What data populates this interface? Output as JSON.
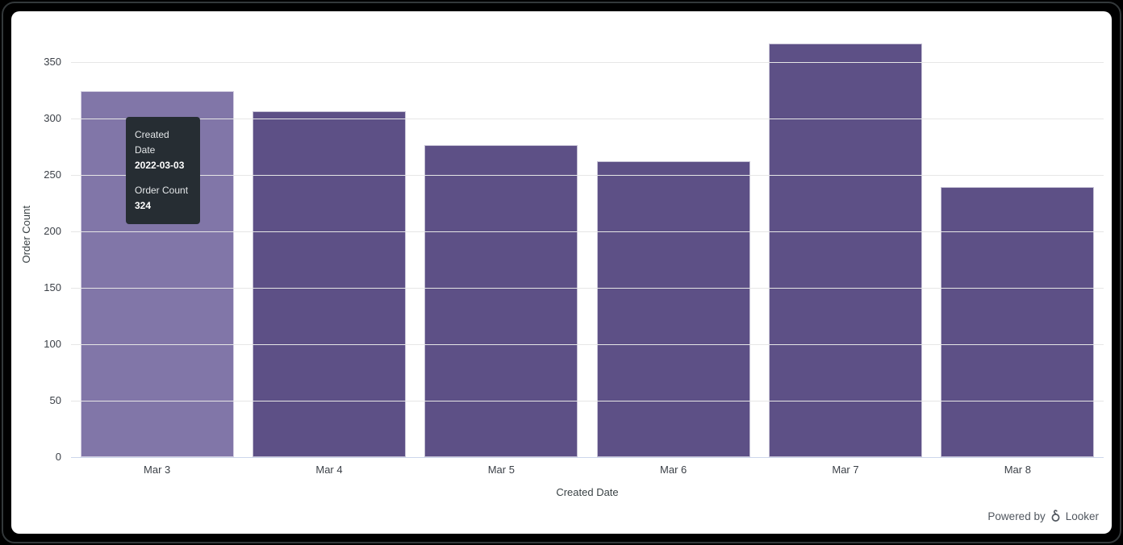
{
  "frame": {
    "background": "#000000",
    "card_background": "#ffffff",
    "edge_highlight": "#33383a"
  },
  "chart_data": {
    "type": "bar",
    "categories": [
      "Mar 3",
      "Mar 4",
      "Mar 5",
      "Mar 6",
      "Mar 7",
      "Mar 8"
    ],
    "values": [
      324,
      306,
      276,
      262,
      366,
      239
    ],
    "series_name": "Order Count",
    "title": "",
    "xlabel": "Created Date",
    "ylabel": "Order Count",
    "ylim": [
      0,
      350
    ],
    "yticks": [
      0,
      50,
      100,
      150,
      200,
      250,
      300,
      350
    ],
    "grid": true,
    "legend_position": "none",
    "bar_color": "#5d5086",
    "bar_hover_color": "#8176a8",
    "hovered_index": 0,
    "gridline_color": "#e6e6e6",
    "axis_line_color": "#ccd6eb",
    "label_color": "#3c4148"
  },
  "tooltip": {
    "label1": "Created Date",
    "value1": "2022-03-03",
    "label2": "Order Count",
    "value2": "324",
    "background": "#262d33"
  },
  "footer": {
    "powered_by": "Powered by",
    "brand": "Looker"
  }
}
